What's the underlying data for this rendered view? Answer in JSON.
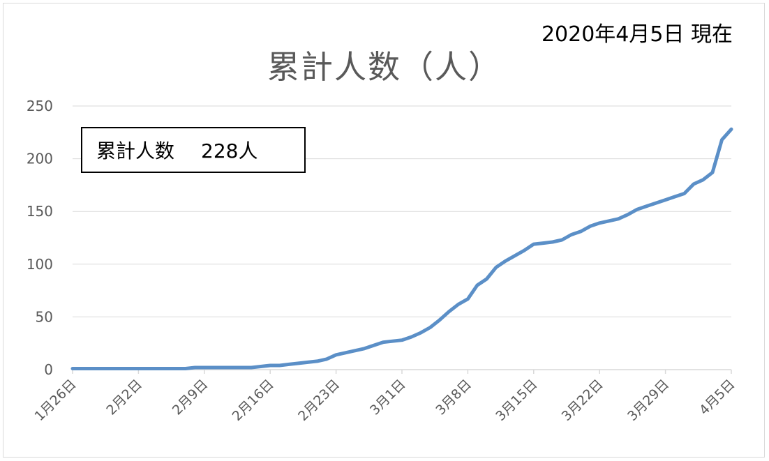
{
  "as_of": "2020年4月5日 現在",
  "title": "累計人数（人）",
  "annotation": {
    "label": "累計人数",
    "value": "228人"
  },
  "colors": {
    "line": "#5b8fc7",
    "grid": "#d9d9d9",
    "text": "#595959"
  },
  "chart_data": {
    "type": "line",
    "title": "累計人数（人）",
    "xlabel": "",
    "ylabel": "",
    "ylim": [
      0,
      250
    ],
    "yticks": [
      0,
      50,
      100,
      150,
      200,
      250
    ],
    "xticks": [
      "1月26日",
      "2月2日",
      "2月9日",
      "2月16日",
      "2月23日",
      "3月1日",
      "3月8日",
      "3月15日",
      "3月22日",
      "3月29日",
      "4月5日"
    ],
    "grid": true,
    "legend": "none",
    "series": [
      {
        "x": [
          "1月26日",
          "1月27日",
          "1月28日",
          "1月29日",
          "1月30日",
          "1月31日",
          "2月1日",
          "2月2日",
          "2月3日",
          "2月4日",
          "2月5日",
          "2月6日",
          "2月7日",
          "2月8日",
          "2月9日",
          "2月10日",
          "2月11日",
          "2月12日",
          "2月13日",
          "2月14日",
          "2月15日",
          "2月16日",
          "2月17日",
          "2月18日",
          "2月19日",
          "2月20日",
          "2月21日",
          "2月22日",
          "2月23日",
          "2月24日",
          "2月25日",
          "2月26日",
          "2月27日",
          "2月28日",
          "2月29日",
          "3月1日",
          "3月2日",
          "3月3日",
          "3月4日",
          "3月5日",
          "3月6日",
          "3月7日",
          "3月8日",
          "3月9日",
          "3月10日",
          "3月11日",
          "3月12日",
          "3月13日",
          "3月14日",
          "3月15日",
          "3月16日",
          "3月17日",
          "3月18日",
          "3月19日",
          "3月20日",
          "3月21日",
          "3月22日",
          "3月23日",
          "3月24日",
          "3月25日",
          "3月26日",
          "3月27日",
          "3月28日",
          "3月29日",
          "3月30日",
          "3月31日",
          "4月1日",
          "4月2日",
          "4月3日",
          "4月4日",
          "4月5日"
        ],
        "values": [
          1,
          1,
          1,
          1,
          1,
          1,
          1,
          1,
          1,
          1,
          1,
          1,
          1,
          2,
          2,
          2,
          2,
          2,
          2,
          2,
          3,
          4,
          4,
          5,
          6,
          7,
          8,
          10,
          14,
          16,
          18,
          20,
          23,
          26,
          27,
          28,
          31,
          35,
          40,
          47,
          55,
          62,
          67,
          80,
          86,
          97,
          103,
          108,
          113,
          119,
          120,
          121,
          123,
          128,
          131,
          136,
          139,
          141,
          143,
          147,
          152,
          155,
          158,
          161,
          164,
          167,
          176,
          180,
          187,
          218,
          228
        ]
      }
    ]
  }
}
